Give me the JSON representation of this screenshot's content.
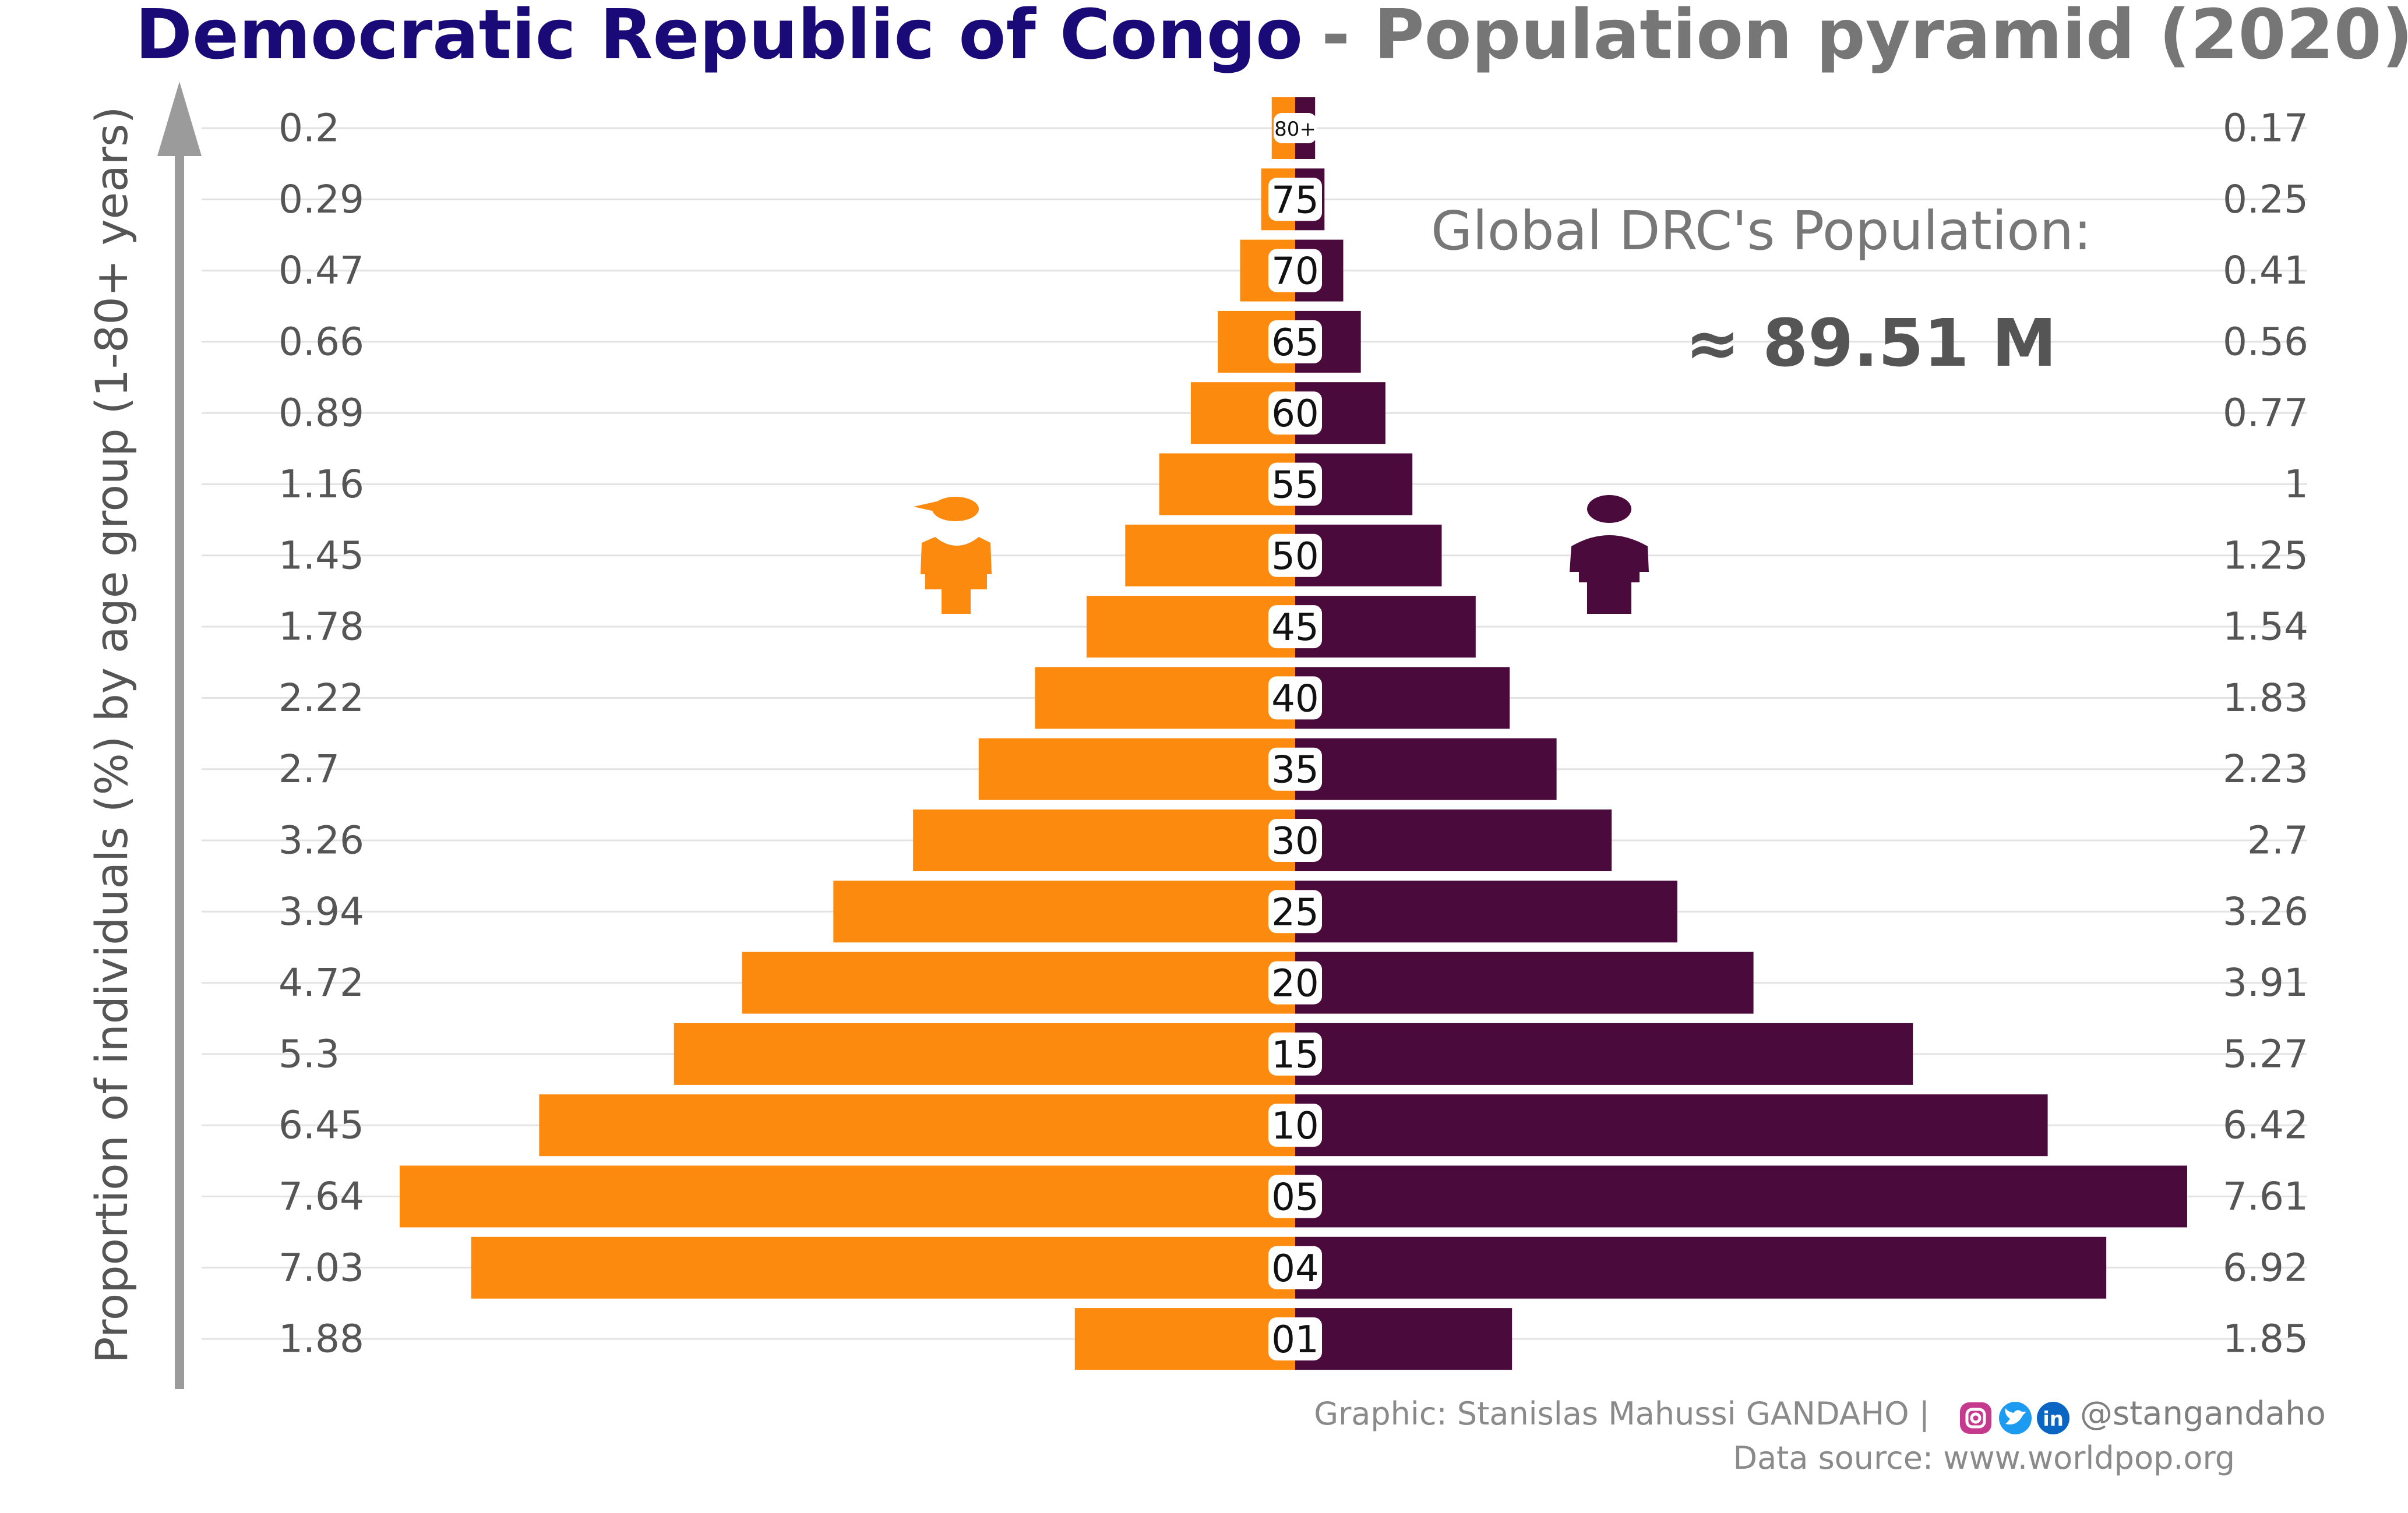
{
  "title": {
    "country": "Democratic Republic of Congo",
    "rest": "- Population pyramid (2020)"
  },
  "ylabel": "Proportion of individuals (%) by age group (1-80+ years)",
  "annotation": {
    "label": "Global DRC's Population:",
    "value": "≈ 89.51 M"
  },
  "caption": {
    "credit": "Graphic: Stanislas Mahussi GANDAHO |",
    "handle": "@stangandaho",
    "source": "Data source: www.worldpop.org"
  },
  "colors": {
    "female": "#fb8a0e",
    "male": "#4b0a3c",
    "title_country": "#1a0a78",
    "title_rest": "#767676",
    "axis_arrow": "#9b9b9b"
  },
  "icons": [
    "female-person-icon",
    "male-person-icon",
    "instagram-icon",
    "twitter-icon",
    "linkedin-icon"
  ],
  "chart_data": {
    "type": "bar",
    "orientation": "horizontal",
    "categories": [
      "80+",
      "75",
      "70",
      "65",
      "60",
      "55",
      "50",
      "45",
      "40",
      "35",
      "30",
      "25",
      "20",
      "15",
      "10",
      "05",
      "04",
      "01"
    ],
    "series": [
      {
        "name": "female",
        "values": [
          0.2,
          0.29,
          0.47,
          0.66,
          0.89,
          1.16,
          1.45,
          1.78,
          2.22,
          2.7,
          3.26,
          3.94,
          4.72,
          5.3,
          6.45,
          7.64,
          7.03,
          1.88
        ]
      },
      {
        "name": "male",
        "values": [
          0.17,
          0.25,
          0.41,
          0.56,
          0.77,
          1,
          1.25,
          1.54,
          1.83,
          2.23,
          2.7,
          3.26,
          3.91,
          5.27,
          6.42,
          7.61,
          6.92,
          1.85
        ]
      }
    ],
    "value_labels": {
      "female": [
        "0.2",
        "0.29",
        "0.47",
        "0.66",
        "0.89",
        "1.16",
        "1.45",
        "1.78",
        "2.22",
        "2.7",
        "3.26",
        "3.94",
        "4.72",
        "5.3",
        "6.45",
        "7.64",
        "7.03",
        "1.88"
      ],
      "male": [
        "0.17",
        "0.25",
        "0.41",
        "0.56",
        "0.77",
        "1",
        "1.25",
        "1.54",
        "1.83",
        "2.23",
        "2.7",
        "3.26",
        "3.91",
        "5.27",
        "6.42",
        "7.61",
        "6.92",
        "1.85"
      ]
    },
    "xlim": [
      -7.64,
      7.64
    ],
    "grid": true
  }
}
